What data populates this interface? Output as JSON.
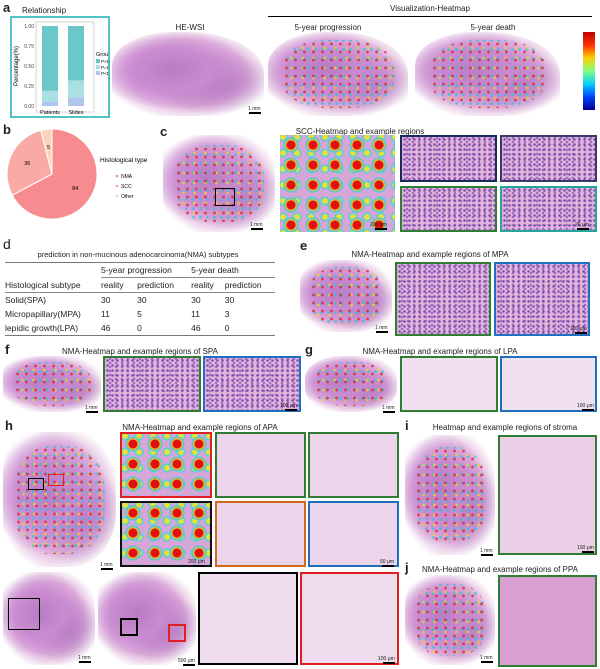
{
  "panels": {
    "a": "a",
    "b": "b",
    "c": "c",
    "d": "d",
    "e": "e",
    "f": "f",
    "g": "g",
    "h": "h",
    "i": "i",
    "j": "j"
  },
  "a": {
    "relationship_title": "Relationship",
    "he_wsi": "HE-WSI",
    "viz_title": "Visualization-Heatmap",
    "prog": "5-year progression",
    "death": "5-year death",
    "scale": "1 mm"
  },
  "chart_data": [
    {
      "type": "bar",
      "stacked": true,
      "title": "Relationship",
      "ylabel": "Percentage(%)",
      "categories": [
        "Patients",
        "Slides"
      ],
      "yticks": [
        "0.00",
        "0.25",
        "0.50",
        "0.75",
        "1.00"
      ],
      "ylim": [
        0,
        1
      ],
      "legend_title": "Group",
      "series": [
        {
          "name": "P>D",
          "color": "#6cc8c8",
          "values": [
            0.81,
            0.68
          ]
        },
        {
          "name": "P=D",
          "color": "#a8e0e4",
          "values": [
            0.14,
            0.22
          ]
        },
        {
          "name": "P<D",
          "color": "#b0c4ee",
          "values": [
            0.05,
            0.1
          ]
        }
      ]
    },
    {
      "type": "pie",
      "legend_title": "Histological type",
      "categories": [
        "NMA",
        "SCC",
        "Other"
      ],
      "values": [
        84,
        36,
        5
      ],
      "colors": [
        "#f78c90",
        "#f9aaa4",
        "#f9d4b8"
      ]
    }
  ],
  "c": {
    "title": "SCC-Heatmap and example regions",
    "s1": "1 mm",
    "s2": "200 μm",
    "s3": "20 μm"
  },
  "d": {
    "title": "prediction in non-mucinous  adenocarcinoma(NMA) subtypes",
    "h1": "5-year progression",
    "h2": "5-year death",
    "col0": "Histological subtype",
    "reality": "reality",
    "prediction": "prediction",
    "rows": [
      [
        "Solid(SPA)",
        "30",
        "30",
        "30",
        "30"
      ],
      [
        "Micropapillary(MPA)",
        "11",
        "5",
        "11",
        "3"
      ],
      [
        "lepidic growth(LPA)",
        "46",
        "0",
        "46",
        "0"
      ]
    ]
  },
  "e": {
    "title": "NMA-Heatmap and example regions of MPA",
    "s1": "1 mm",
    "s2": "100 μm"
  },
  "f": {
    "title": "NMA-Heatmap and example regions of SPA",
    "s1": "1 mm",
    "s2": "100 μm"
  },
  "g": {
    "title": "NMA-Heatmap and example regions of LPA",
    "s1": "1 mm",
    "s2": "100 μm"
  },
  "h": {
    "title": "NMA-Heatmap and example regions of APA",
    "s1": "1 mm",
    "s2": "200 μm",
    "s3": "50 μm",
    "s4": "1 mm",
    "s5": "500 μm",
    "s6": "100 μm"
  },
  "i": {
    "title": "Heatmap and example regions of stroma",
    "s1": "1 mm",
    "s2": "100 μm"
  },
  "j": {
    "title": "NMA-Heatmap and example regions of PPA",
    "s1": "1 mm"
  }
}
